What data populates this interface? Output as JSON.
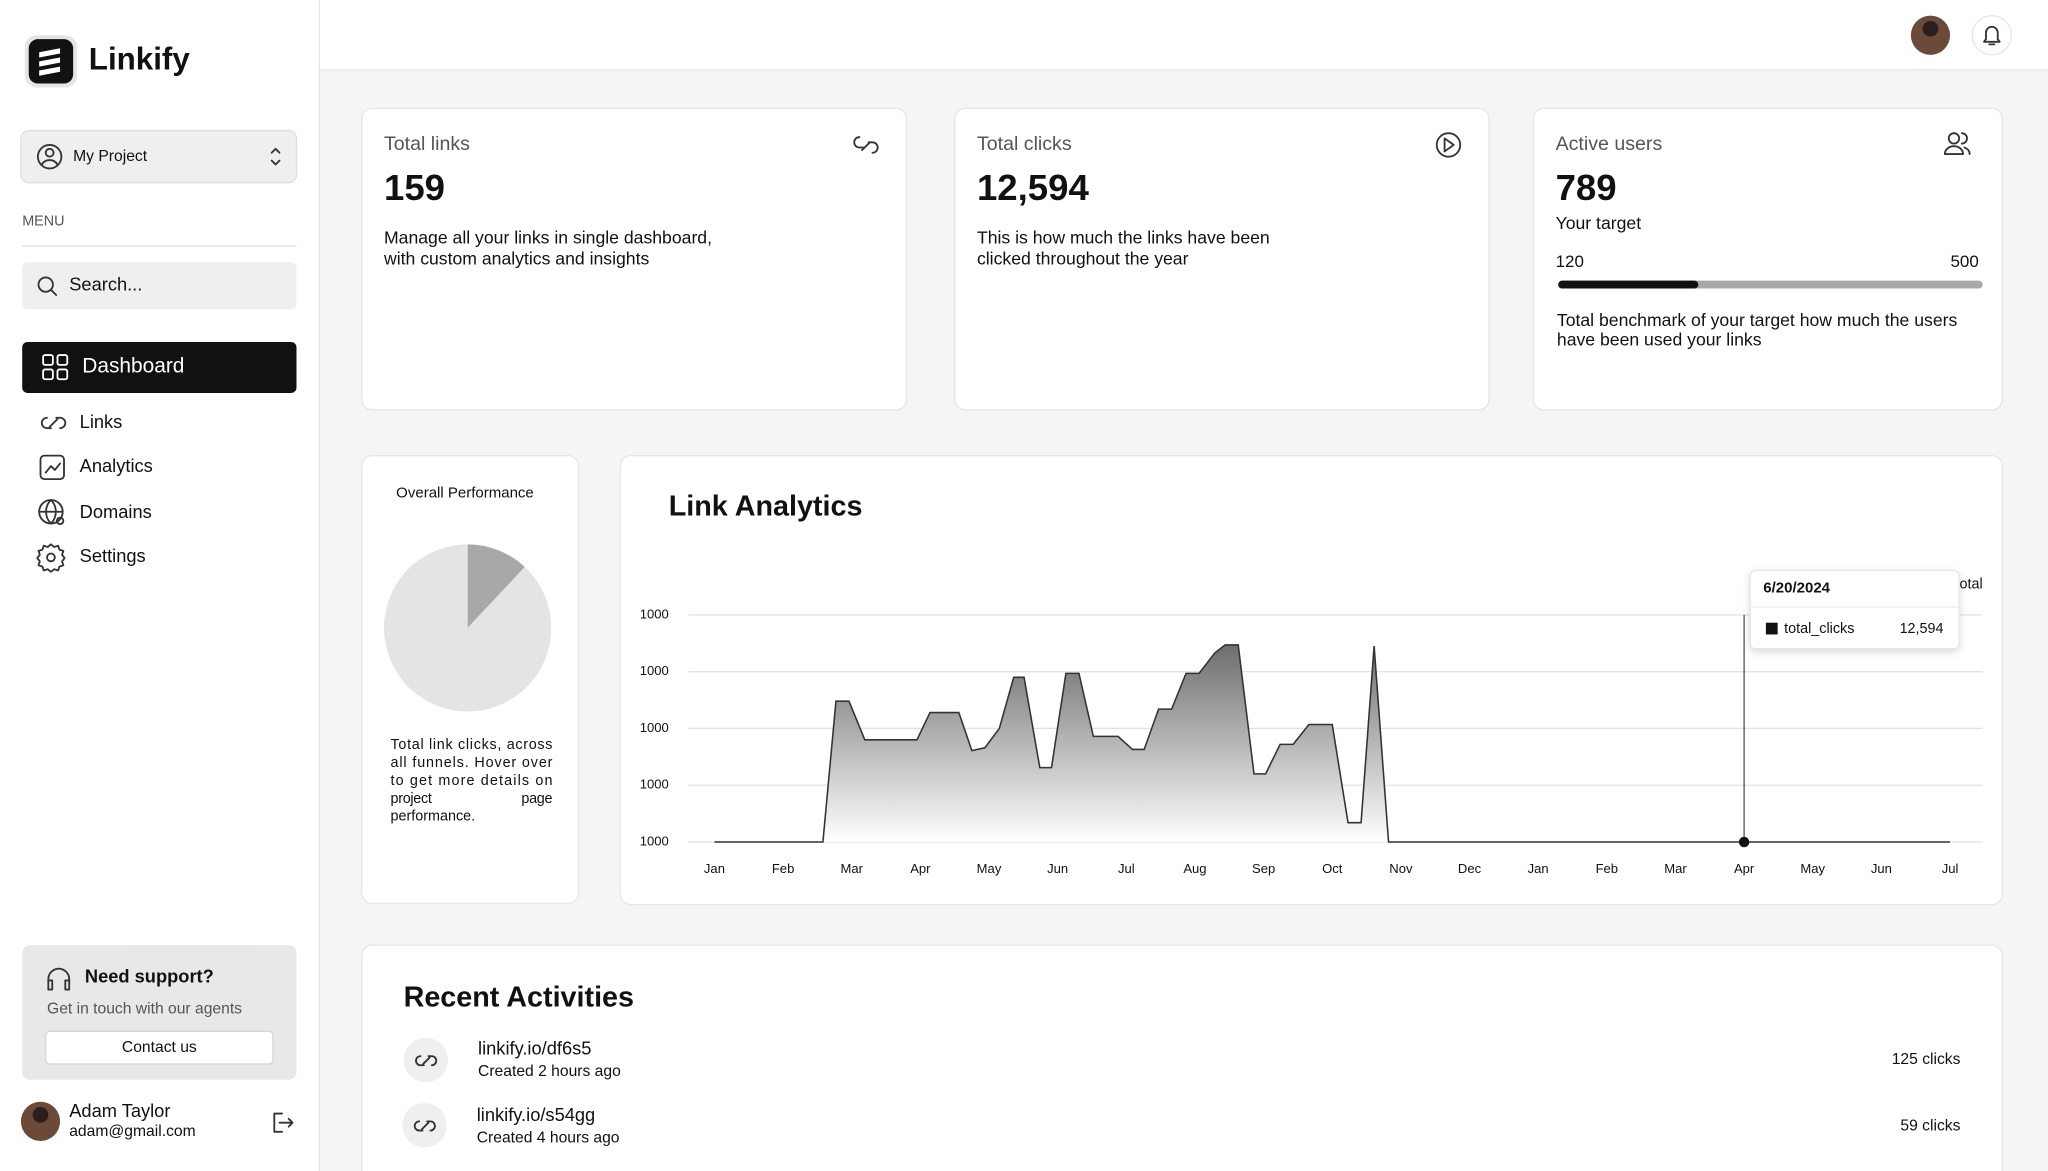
{
  "sidebar": {
    "brand": "Linkify",
    "project": "My Project",
    "menu_label": "MENU",
    "search_placeholder": "Search...",
    "nav": [
      "Dashboard",
      "Links",
      "Analytics",
      "Domains",
      "Settings"
    ],
    "support": {
      "title": "Need support?",
      "text": "Get in touch with our agents",
      "button": "Contact us"
    },
    "user": {
      "name": "Adam Taylor",
      "email": "adam@gmail.com"
    }
  },
  "stats": [
    {
      "label": "Total links",
      "value": "159",
      "description": [
        "Manage all your links in single dashboard,",
        "with custom analytics and insights"
      ]
    },
    {
      "label": "Total clicks",
      "value": "12,594",
      "description": [
        "This is how much the links have been",
        "clicked throughout the year"
      ]
    },
    {
      "label": "Active users",
      "value": "789",
      "target_label": "Your target",
      "target_min": 120,
      "target_max": 500,
      "progress": 0.33,
      "description": [
        "Total benchmark of your target how much the users",
        "have been used your links"
      ]
    }
  ],
  "performance": {
    "title": "Overall Performance",
    "chart_data": {
      "type": "pie",
      "values": [
        12,
        88
      ],
      "colors": [
        "#a8a8a8",
        "#e4e4e4"
      ]
    },
    "description": [
      "Total link clicks, across",
      "all funnels. Hover over",
      "to get more details on",
      "project page",
      "performance."
    ]
  },
  "link_analytics": {
    "chart_data": {
      "type": "area",
      "title": "Link Analytics",
      "xlim": [
        0,
        18
      ],
      "xticks": [
        {
          "value": 0,
          "label": "Jan"
        },
        {
          "value": 1,
          "label": "Feb"
        },
        {
          "value": 2,
          "label": "Mar"
        },
        {
          "value": 3,
          "label": "Apr"
        },
        {
          "value": 4,
          "label": "May"
        },
        {
          "value": 5,
          "label": "Jun"
        },
        {
          "value": 6,
          "label": "Jul"
        },
        {
          "value": 7,
          "label": "Aug"
        },
        {
          "value": 8,
          "label": "Sep"
        },
        {
          "value": 9,
          "label": "Oct"
        },
        {
          "value": 10,
          "label": "Nov"
        },
        {
          "value": 11,
          "label": "Dec"
        },
        {
          "value": 12,
          "label": "Jan"
        },
        {
          "value": 13,
          "label": "Feb"
        },
        {
          "value": 14,
          "label": "Mar"
        },
        {
          "value": 15,
          "label": "Apr"
        },
        {
          "value": 16,
          "label": "May"
        },
        {
          "value": 17,
          "label": "Jun"
        },
        {
          "value": 18,
          "label": "Jul"
        }
      ],
      "ylim": [
        0,
        4
      ],
      "yticks": [
        {
          "value": 0,
          "label": "1000"
        },
        {
          "value": 1,
          "label": "1000"
        },
        {
          "value": 2,
          "label": "1000"
        },
        {
          "value": 3,
          "label": "1000"
        },
        {
          "value": 4,
          "label": "1000"
        }
      ],
      "grid": true,
      "series": [
        {
          "name": "total_clicks",
          "color": "#333333",
          "x": [
            0,
            1.58,
            1.77,
            1.96,
            2.19,
            2.95,
            3.14,
            3.56,
            3.75,
            3.94,
            4.15,
            4.36,
            4.51,
            4.74,
            4.91,
            5.12,
            5.31,
            5.52,
            5.88,
            6.09,
            6.26,
            6.47,
            6.66,
            6.87,
            7.06,
            7.29,
            7.44,
            7.63,
            7.86,
            8.03,
            8.24,
            8.43,
            8.66,
            9.0,
            9.23,
            9.42,
            9.61,
            9.82,
            18
          ],
          "values": [
            0,
            0,
            2.48,
            2.48,
            1.8,
            1.8,
            2.28,
            2.28,
            1.61,
            1.66,
            2.0,
            2.9,
            2.9,
            1.31,
            1.31,
            2.97,
            2.97,
            1.86,
            1.86,
            1.63,
            1.63,
            2.34,
            2.34,
            2.97,
            2.97,
            3.33,
            3.47,
            3.47,
            1.2,
            1.2,
            1.72,
            1.72,
            2.07,
            2.07,
            0.34,
            0.34,
            3.45,
            0,
            0
          ]
        }
      ]
    },
    "legend_fragment": "otal",
    "tooltip": {
      "date": "6/20/2024",
      "value": "12,594",
      "x": 15
    }
  },
  "recent": {
    "title": "Recent Activities",
    "items": [
      {
        "url": "linkify.io/df6s5",
        "meta": "Created 2 hours ago",
        "clicks": "125 clicks"
      },
      {
        "url": "linkify.io/s54gg",
        "meta": "Created 4 hours ago",
        "clicks": "59 clicks"
      }
    ]
  }
}
